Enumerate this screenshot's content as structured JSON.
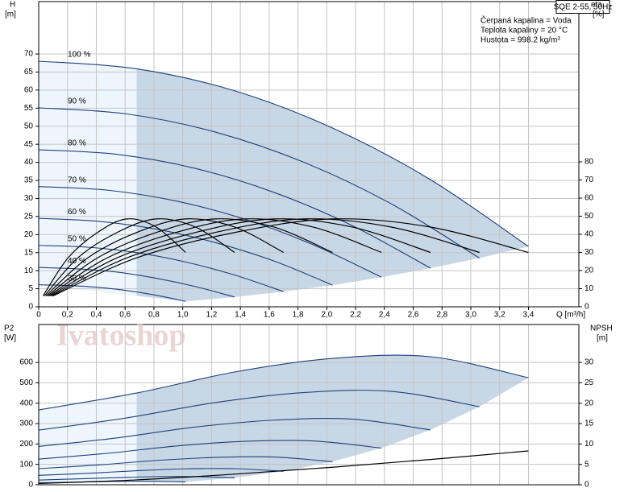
{
  "watermark": "Ivatoshop",
  "chart_data": [
    {
      "type": "line",
      "title": "SQE 2-55, 50Hz",
      "notes": [
        "Čerpaná kapalina = Voda",
        "Teplota kapaliny = 20 °C",
        "Hustota = 998.2 kg/m³"
      ],
      "x_label": "Q [m³/h]",
      "y_label": "H",
      "y_unit": "[m]",
      "y2_label": "eta",
      "y2_unit": "[%]",
      "xlim": [
        0,
        3.75
      ],
      "xticks": [
        0,
        {
          "value": 0.2,
          "label": "0,2"
        },
        {
          "value": 0.4,
          "label": "0,4"
        },
        {
          "value": 0.6,
          "label": "0,6"
        },
        {
          "value": 0.8,
          "label": "0,8"
        },
        {
          "value": 1.0,
          "label": "1,0"
        },
        {
          "value": 1.2,
          "label": "1,2"
        },
        {
          "value": 1.4,
          "label": "1,4"
        },
        {
          "value": 1.6,
          "label": "1,6"
        },
        {
          "value": 1.8,
          "label": "1,8"
        },
        {
          "value": 2.0,
          "label": "2,0"
        },
        {
          "value": 2.2,
          "label": "2,2"
        },
        {
          "value": 2.4,
          "label": "2,4"
        },
        {
          "value": 2.6,
          "label": "2,6"
        },
        {
          "value": 2.8,
          "label": "2,8"
        },
        {
          "value": 3.0,
          "label": "3,0"
        },
        {
          "value": 3.2,
          "label": "3,2"
        },
        {
          "value": 3.4,
          "label": "3,4"
        }
      ],
      "ylim": [
        0,
        84.5
      ],
      "yticks": [
        0,
        5,
        10,
        15,
        20,
        25,
        30,
        35,
        40,
        45,
        50,
        55,
        60,
        65,
        70
      ],
      "y2lim": [
        0,
        168.4
      ],
      "y2ticks": [
        0,
        10,
        20,
        30,
        40,
        50,
        60,
        70,
        80
      ],
      "grid": true,
      "shade": "#c8d7e6",
      "shade_light": "#eef6fd",
      "series": [
        {
          "name": "100 %",
          "color": "#1f3f7a",
          "x": [
            0,
            0.68,
            1.36,
            2.04,
            2.72,
            3.4
          ],
          "values": [
            68,
            65.9,
            59.8,
            49.5,
            35.2,
            16.7
          ]
        },
        {
          "name": "90 %",
          "color": "#1f3f7a",
          "x": [
            0,
            0.612,
            1.224,
            1.836,
            2.448,
            3.06
          ],
          "values": [
            55.1,
            53.4,
            48.4,
            40.1,
            28.5,
            13.5
          ]
        },
        {
          "name": "80 %",
          "color": "#1f3f7a",
          "x": [
            0,
            0.544,
            1.088,
            1.632,
            2.176,
            2.72
          ],
          "values": [
            43.5,
            42.2,
            38.3,
            31.7,
            22.5,
            10.7
          ]
        },
        {
          "name": "70 %",
          "color": "#1f3f7a",
          "x": [
            0,
            0.476,
            0.952,
            1.428,
            1.904,
            2.38
          ],
          "values": [
            33.3,
            32.3,
            29.3,
            24.3,
            17.2,
            8.2
          ]
        },
        {
          "name": "60 %",
          "color": "#1f3f7a",
          "x": [
            0,
            0.408,
            0.816,
            1.224,
            1.632,
            2.04
          ],
          "values": [
            24.5,
            23.7,
            21.5,
            17.8,
            12.7,
            6.0
          ]
        },
        {
          "name": "50 %",
          "color": "#1f3f7a",
          "x": [
            0,
            0.34,
            0.68,
            1.02,
            1.36,
            1.7
          ],
          "values": [
            17,
            16.5,
            15,
            12.4,
            8.8,
            4.2
          ]
        },
        {
          "name": "40 %",
          "color": "#1f3f7a",
          "x": [
            0,
            0.272,
            0.544,
            0.816,
            1.088,
            1.36
          ],
          "values": [
            10.9,
            10.5,
            9.6,
            7.9,
            5.6,
            2.7
          ]
        },
        {
          "name": "30 %",
          "color": "#1f3f7a",
          "x": [
            0,
            0.204,
            0.408,
            0.612,
            0.816,
            1.02
          ],
          "values": [
            6.1,
            5.9,
            5.4,
            4.5,
            3.2,
            1.5
          ]
        },
        {
          "axis": "y2",
          "color": "#000000",
          "x": [
            0.1,
            0.68,
            1.36,
            2.04,
            2.72,
            3.4
          ],
          "values": [
            6,
            27,
            41,
            48.5,
            44,
            30
          ]
        },
        {
          "axis": "y2",
          "color": "#000000",
          "x": [
            0.09,
            0.612,
            1.224,
            1.836,
            2.448,
            3.06
          ],
          "values": [
            6,
            27,
            41,
            48.5,
            44,
            30
          ]
        },
        {
          "axis": "y2",
          "color": "#000000",
          "x": [
            0.08,
            0.544,
            1.088,
            1.632,
            2.176,
            2.72
          ],
          "values": [
            6,
            27,
            41,
            48.5,
            44,
            30
          ]
        },
        {
          "axis": "y2",
          "color": "#000000",
          "x": [
            0.07,
            0.476,
            0.952,
            1.428,
            1.904,
            2.38
          ],
          "values": [
            6,
            27,
            41,
            48.5,
            44,
            30
          ]
        },
        {
          "axis": "y2",
          "color": "#000000",
          "x": [
            0.06,
            0.408,
            0.816,
            1.224,
            1.632,
            2.04
          ],
          "values": [
            6,
            27,
            41,
            48.5,
            44,
            30
          ]
        },
        {
          "axis": "y2",
          "color": "#000000",
          "x": [
            0.05,
            0.34,
            0.68,
            1.02,
            1.36,
            1.7
          ],
          "values": [
            6,
            27,
            41,
            48.5,
            44,
            30
          ]
        },
        {
          "axis": "y2",
          "color": "#000000",
          "x": [
            0.04,
            0.272,
            0.544,
            0.816,
            1.088,
            1.36
          ],
          "values": [
            6,
            27,
            41,
            48.5,
            44,
            30
          ]
        },
        {
          "axis": "y2",
          "color": "#000000",
          "x": [
            0.03,
            0.204,
            0.408,
            0.612,
            0.816,
            1.02
          ],
          "values": [
            6,
            27,
            41,
            48.5,
            44,
            30
          ]
        }
      ]
    },
    {
      "type": "line",
      "y_label": "P2",
      "y_unit": "[W]",
      "y2_label": "NPSH",
      "y2_unit": "[m]",
      "xlim": [
        0,
        3.75
      ],
      "xticks": [
        0,
        0.2,
        0.4,
        0.6,
        0.8,
        1.0,
        1.2,
        1.4,
        1.6,
        1.8,
        2.0,
        2.2,
        2.4,
        2.6,
        2.8,
        3.0,
        3.2,
        3.4
      ],
      "ylim": [
        0,
        786
      ],
      "yticks": [
        0,
        100,
        200,
        300,
        400,
        500,
        600
      ],
      "y2lim": [
        0,
        39.3
      ],
      "y2ticks": [
        0,
        5,
        10,
        15,
        20,
        25,
        30
      ],
      "grid": true,
      "shade": "#c8d7e6",
      "shade_light": "#eef6fd",
      "series": [
        {
          "color": "#1f3f7a",
          "x": [
            0,
            0.68,
            1.36,
            2.04,
            2.72,
            3.4
          ],
          "values": [
            367,
            450,
            553,
            620,
            628,
            525
          ]
        },
        {
          "color": "#1f3f7a",
          "x": [
            0,
            0.612,
            1.224,
            1.836,
            2.448,
            3.06
          ],
          "values": [
            268,
            328,
            403,
            452,
            458,
            383
          ]
        },
        {
          "color": "#1f3f7a",
          "x": [
            0,
            0.544,
            1.088,
            1.632,
            2.176,
            2.72
          ],
          "values": [
            188,
            230,
            283,
            317,
            322,
            269
          ]
        },
        {
          "color": "#1f3f7a",
          "x": [
            0,
            0.476,
            0.952,
            1.428,
            1.904,
            2.38
          ],
          "values": [
            126,
            154,
            190,
            213,
            215,
            180
          ]
        },
        {
          "color": "#1f3f7a",
          "x": [
            0,
            0.408,
            0.816,
            1.224,
            1.632,
            2.04
          ],
          "values": [
            79,
            97,
            119,
            134,
            136,
            113
          ]
        },
        {
          "color": "#1f3f7a",
          "x": [
            0,
            0.34,
            0.68,
            1.02,
            1.36,
            1.7
          ],
          "values": [
            46,
            56,
            69,
            78,
            79,
            66
          ]
        },
        {
          "color": "#1f3f7a",
          "x": [
            0,
            0.272,
            0.544,
            0.816,
            1.088,
            1.36
          ],
          "values": [
            23,
            29,
            35,
            40,
            40,
            34
          ]
        },
        {
          "color": "#1f3f7a",
          "x": [
            0,
            0.204,
            0.408,
            0.612,
            0.816,
            1.02
          ],
          "values": [
            10,
            12,
            15,
            17,
            17,
            14
          ]
        },
        {
          "axis": "y2",
          "color": "#000000",
          "x": [
            0,
            0.68,
            1.36,
            2.04,
            2.72,
            3.4
          ],
          "values": [
            0.3,
            1.2,
            2.6,
            4.3,
            6.2,
            8.3
          ]
        }
      ]
    }
  ]
}
